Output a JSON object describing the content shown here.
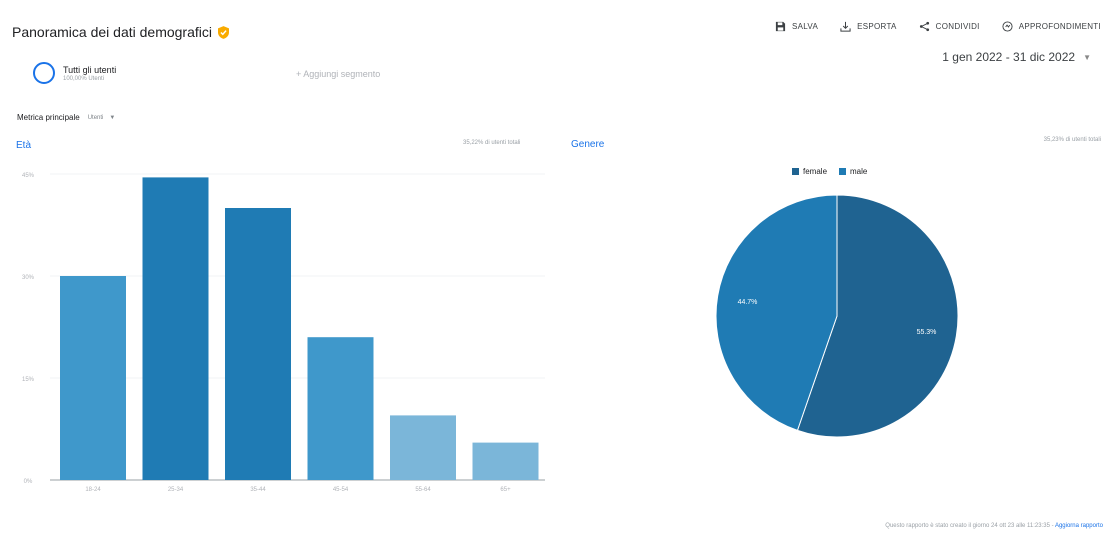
{
  "header": {
    "title": "Panoramica dei dati demografici",
    "toolbar": {
      "save": "SALVA",
      "export": "ESPORTA",
      "share": "CONDIVIDI",
      "insights": "APPROFONDIMENTI"
    },
    "date_range": "1 gen 2022 - 31 dic 2022"
  },
  "segment": {
    "name": "Tutti gli utenti",
    "subtitle": "100,00% Utenti",
    "add_label": "+ Aggiungi segmento"
  },
  "metric": {
    "label": "Metrica principale",
    "value": "Utenti"
  },
  "age_card": {
    "title": "Età",
    "meta": "35,22% di utenti totali"
  },
  "gender_card": {
    "title": "Genere",
    "meta": "35,23% di utenti totali"
  },
  "footer": {
    "text": "Questo rapporto è stato creato il giorno 24 ott 23 alle 11:23:35 - ",
    "link": "Aggiorna rapporto"
  },
  "colors": {
    "accent": "#1a73e8",
    "female": "#1f6391",
    "male": "#1f7bb4"
  },
  "chart_data": [
    {
      "type": "bar",
      "title": "Età",
      "categories": [
        "18-24",
        "25-34",
        "35-44",
        "45-54",
        "55-64",
        "65+"
      ],
      "values": [
        30,
        44.5,
        40,
        21,
        9.5,
        5.5
      ],
      "colors": [
        "#3f98cb",
        "#1f7bb4",
        "#1f7bb4",
        "#3f98cb",
        "#7bb6d9",
        "#7bb6d9"
      ],
      "ytick_labels": [
        "45%",
        "30%",
        "15%",
        "0%"
      ],
      "yticks": [
        45,
        30,
        15,
        0
      ],
      "ylim": [
        0,
        45
      ]
    },
    {
      "type": "pie",
      "title": "Genere",
      "labels": [
        "female",
        "male"
      ],
      "values": [
        55.3,
        44.7
      ],
      "data_labels": [
        "55.3%",
        "44.7%"
      ],
      "colors": [
        "#1f6391",
        "#1f7bb4"
      ]
    }
  ]
}
